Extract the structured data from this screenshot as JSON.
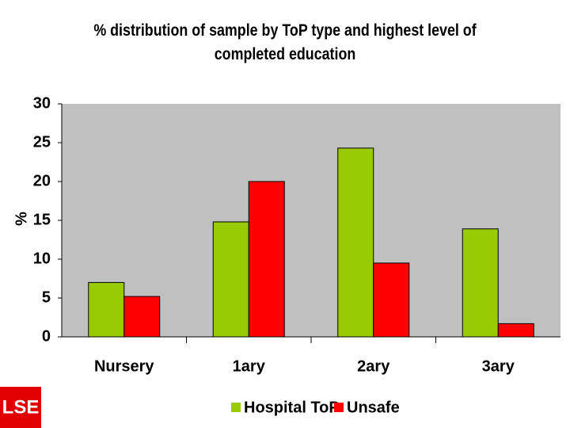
{
  "chart_data": {
    "type": "bar",
    "title": "% distribution of sample by ToP type and highest level of completed education",
    "y_label": "%",
    "categories": [
      "Nursery",
      "1ary",
      "2ary",
      "3ary"
    ],
    "series": [
      {
        "name": "Hospital ToP",
        "color": "#99cc00",
        "values": [
          7,
          14.8,
          24.3,
          13.9
        ]
      },
      {
        "name": "Unsafe",
        "color": "#ff0000",
        "values": [
          5.2,
          20,
          9.5,
          1.7
        ]
      }
    ],
    "ylim": [
      0,
      30
    ],
    "yticks": [
      0,
      5,
      10,
      15,
      20,
      25,
      30
    ],
    "plot_background": "#c0c0c0",
    "logo": "LSE"
  }
}
